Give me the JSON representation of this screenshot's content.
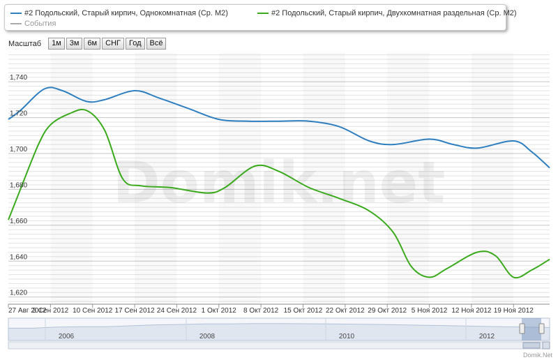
{
  "legend": {
    "series_1": "#2 Подольский, Старый кирпич, Однокомнатная (Ср. М2)",
    "series_2": "#2 Подольский, Старый кирпич, Двухкомнатная раздельная (Ср. М2)",
    "events": "События"
  },
  "zoom": {
    "label": "Масштаб",
    "buttons": [
      "1м",
      "3м",
      "6м",
      "СНГ",
      "Год",
      "Всё"
    ]
  },
  "watermark": "Domik.net",
  "credit": "Domik.Net",
  "navigator": {
    "years": [
      "2006",
      "2008",
      "2010",
      "2012"
    ]
  },
  "colors": {
    "series_1": "#2e7fc0",
    "series_2": "#3aaa1c",
    "events": "#aaaaaa"
  },
  "chart_data": {
    "type": "line",
    "x_ticks": [
      "27 Авг 2012",
      "3 Сен 2012",
      "10 Сен 2012",
      "17 Сен 2012",
      "24 Сен 2012",
      "1 Окт 2012",
      "8 Окт 2012",
      "15 Окт 2012",
      "22 Окт 2012",
      "29 Окт 2012",
      "5 Ноя 2012",
      "12 Ноя 2012",
      "19 Ноя 2012"
    ],
    "y_ticks": [
      "1,620",
      "1,640",
      "1,660",
      "1,680",
      "1,700",
      "1,720",
      "1,740"
    ],
    "ylim": [
      1616,
      1756
    ],
    "x_domain": [
      "2012-08-27",
      "2012-11-25"
    ],
    "grid": true,
    "legend_position": "top",
    "series": [
      {
        "name": "#2 Подольский, Старый кирпич, Однокомнатная (Ср. М2)",
        "x": [
          "2012-08-27",
          "2012-08-29",
          "2012-09-02",
          "2012-09-05",
          "2012-09-09",
          "2012-09-12",
          "2012-09-17",
          "2012-09-21",
          "2012-09-26",
          "2012-10-01",
          "2012-10-06",
          "2012-10-11",
          "2012-10-16",
          "2012-10-21",
          "2012-10-26",
          "2012-10-30",
          "2012-11-05",
          "2012-11-09",
          "2012-11-13",
          "2012-11-19",
          "2012-11-22",
          "2012-11-25"
        ],
        "values": [
          1719,
          1724,
          1736,
          1735,
          1729,
          1730,
          1735,
          1731,
          1725,
          1719,
          1718,
          1718,
          1718,
          1715,
          1707,
          1705,
          1708,
          1705,
          1703,
          1707,
          1701,
          1692
        ]
      },
      {
        "name": "#2 Подольский, Старый кирпич, Двухкомнатная раздельная (Ср. М2)",
        "x": [
          "2012-08-27",
          "2012-08-29",
          "2012-09-01",
          "2012-09-03",
          "2012-09-06",
          "2012-09-09",
          "2012-09-12",
          "2012-09-15",
          "2012-09-18",
          "2012-09-23",
          "2012-09-29",
          "2012-10-02",
          "2012-10-07",
          "2012-10-11",
          "2012-10-16",
          "2012-10-21",
          "2012-10-26",
          "2012-10-30",
          "2012-11-02",
          "2012-11-05",
          "2012-11-08",
          "2012-11-13",
          "2012-11-16",
          "2012-11-19",
          "2012-11-22",
          "2012-11-25"
        ],
        "values": [
          1663,
          1680,
          1705,
          1716,
          1722,
          1724,
          1713,
          1686,
          1682,
          1681,
          1678,
          1681,
          1693,
          1690,
          1681,
          1675,
          1668,
          1656,
          1637,
          1631,
          1636,
          1645,
          1643,
          1631,
          1635,
          1641
        ]
      }
    ]
  }
}
